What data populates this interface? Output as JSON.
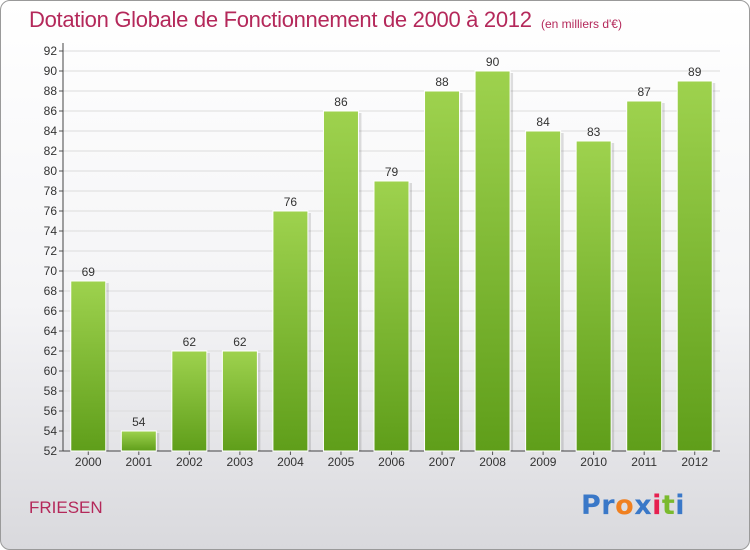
{
  "title": "Dotation Globale de Fonctionnement de 2000 à 2012",
  "subtitle": "(en milliers d'€)",
  "commune": "FRIESEN",
  "logo": {
    "text": "Proxiti",
    "letters": [
      "P",
      "r",
      "o",
      "x",
      "i",
      "t",
      "i"
    ],
    "letter_colors": [
      "#3a78c8",
      "#3a78c8",
      "#f08020",
      "#3a78c8",
      "#e62050",
      "#7aba2e",
      "#3a78c8"
    ]
  },
  "colors": {
    "title": "#b4285a",
    "bar_light": "#9ed24e",
    "bar_dark": "#5f9e1a",
    "grid": "#dcdcdc",
    "axis_text": "#333333"
  },
  "chart_data": {
    "type": "bar",
    "categories": [
      "2000",
      "2001",
      "2002",
      "2003",
      "2004",
      "2005",
      "2006",
      "2007",
      "2008",
      "2009",
      "2010",
      "2011",
      "2012"
    ],
    "values": [
      69,
      54,
      62,
      62,
      76,
      86,
      79,
      88,
      90,
      84,
      83,
      87,
      89
    ],
    "ylim": [
      52,
      92
    ],
    "yticks": [
      52,
      54,
      56,
      58,
      60,
      62,
      64,
      66,
      68,
      70,
      72,
      74,
      76,
      78,
      80,
      82,
      84,
      86,
      88,
      90,
      92
    ],
    "grid": true,
    "data_labels": true
  }
}
